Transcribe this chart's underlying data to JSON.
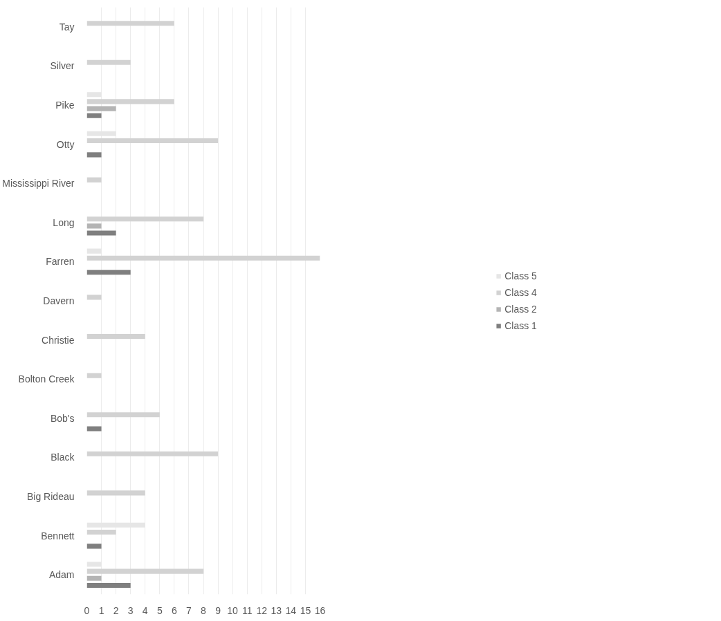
{
  "chart_data": {
    "type": "bar",
    "orientation": "horizontal",
    "categories": [
      "Tay",
      "Silver",
      "Pike",
      "Otty",
      "Mississippi River",
      "Long",
      "Farren",
      "Davern",
      "Christie",
      "Bolton Creek",
      "Bob's",
      "Black",
      "Big Rideau",
      "Bennett",
      "Adam"
    ],
    "series": [
      {
        "name": "Class 5",
        "color": "#e6e6e6",
        "values": [
          null,
          null,
          1,
          2,
          null,
          null,
          1,
          null,
          null,
          null,
          null,
          null,
          null,
          4,
          1
        ]
      },
      {
        "name": "Class 4",
        "color": "#d2d2d2",
        "values": [
          6,
          3,
          6,
          9,
          1,
          8,
          16,
          1,
          4,
          1,
          5,
          9,
          4,
          2,
          8
        ]
      },
      {
        "name": "Class 2",
        "color": "#b4b4b4",
        "values": [
          null,
          null,
          2,
          null,
          null,
          1,
          null,
          null,
          null,
          null,
          null,
          null,
          null,
          null,
          1
        ]
      },
      {
        "name": "Class 1",
        "color": "#7f7f7f",
        "values": [
          null,
          null,
          1,
          1,
          null,
          2,
          3,
          null,
          null,
          null,
          1,
          null,
          null,
          1,
          3
        ]
      }
    ],
    "xlim": [
      0,
      16
    ],
    "xticks": [
      0,
      1,
      2,
      3,
      4,
      5,
      6,
      7,
      8,
      9,
      10,
      11,
      12,
      13,
      14,
      15,
      16
    ],
    "grid": "x",
    "legend": "right"
  }
}
